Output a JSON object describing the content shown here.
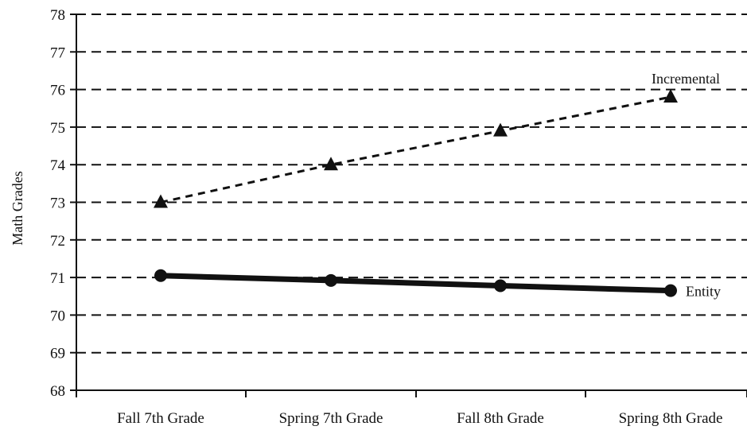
{
  "chart_data": {
    "type": "line",
    "title": "",
    "xlabel": "",
    "ylabel": "Math Grades",
    "ylim": [
      68,
      78
    ],
    "yticks": [
      68,
      69,
      70,
      71,
      72,
      73,
      74,
      75,
      76,
      77,
      78
    ],
    "grid": true,
    "categories": [
      "Fall 7th Grade",
      "Spring 7th Grade",
      "Fall 8th Grade",
      "Spring 8th Grade"
    ],
    "series": [
      {
        "name": "Incremental",
        "values": [
          73.0,
          74.0,
          74.9,
          75.8
        ],
        "marker": "triangle",
        "line_style": "dashed",
        "color": "#111111"
      },
      {
        "name": "Entity",
        "values": [
          71.05,
          70.92,
          70.78,
          70.65
        ],
        "marker": "circle",
        "line_style": "solid",
        "color": "#111111"
      }
    ]
  }
}
